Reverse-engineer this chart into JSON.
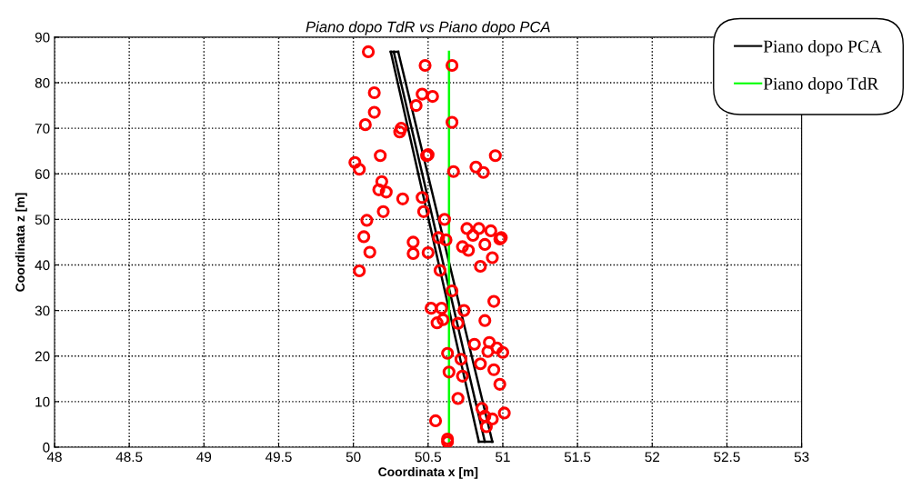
{
  "chart_data": {
    "type": "scatter",
    "title": "Piano dopo TdR vs Piano dopo PCA",
    "xlabel": "Coordinata x [m]",
    "ylabel": "Coordinata z [m]",
    "xlim": [
      48,
      53
    ],
    "xticks": [
      48,
      48.5,
      49,
      49.5,
      50,
      50.5,
      51,
      51.5,
      52,
      52.5,
      53
    ],
    "ylim": [
      0,
      90
    ],
    "yticks": [
      0,
      10,
      20,
      30,
      40,
      50,
      60,
      70,
      80,
      90
    ],
    "grid": true,
    "legend": "top right",
    "series": [
      {
        "color": "#ff0000",
        "marker": "circle",
        "x": [
          50.1,
          50.48,
          50.66,
          50.14,
          50.46,
          50.53,
          50.42,
          50.14,
          50.08,
          50.31,
          50.32,
          50.66,
          50.18,
          50.5,
          50.49,
          50.95,
          50.01,
          50.04,
          50.82,
          50.67,
          50.87,
          50.19,
          50.17,
          50.22,
          50.33,
          50.46,
          50.61,
          50.09,
          50.47,
          50.2,
          50.07,
          50.4,
          50.57,
          50.62,
          50.76,
          50.84,
          50.92,
          50.8,
          50.99,
          50.98,
          50.73,
          50.77,
          50.88,
          50.11,
          50.4,
          50.5,
          50.04,
          50.58,
          50.85,
          50.93,
          50.66,
          50.94,
          50.52,
          50.59,
          50.74,
          50.56,
          50.6,
          50.7,
          50.88,
          50.91,
          50.81,
          50.96,
          50.9,
          51.0,
          50.63,
          50.72,
          50.85,
          50.94,
          50.64,
          50.73,
          50.98,
          50.7,
          50.86,
          50.88,
          50.93,
          51.01,
          50.55,
          50.89,
          50.63,
          50.63
        ],
        "values": [
          86.8,
          83.8,
          83.8,
          77.8,
          77.5,
          77,
          75,
          73.5,
          70.8,
          69.2,
          70,
          71.3,
          64,
          64.2,
          64,
          64,
          62.5,
          61,
          61.5,
          60.5,
          60.3,
          58.3,
          56.5,
          56,
          54.5,
          54.8,
          50,
          49.8,
          51.7,
          51.7,
          46.2,
          45,
          46,
          45.5,
          48,
          48,
          47.5,
          46.5,
          46,
          45.7,
          44,
          43.2,
          44.5,
          42.8,
          42.5,
          42.7,
          38.7,
          38.8,
          39.7,
          41.6,
          34.3,
          32,
          30.5,
          30.5,
          30,
          27.3,
          28,
          27.2,
          27.8,
          23,
          22.6,
          21.8,
          21,
          20.8,
          20.6,
          19.3,
          18.3,
          17,
          16.5,
          15.6,
          13.8,
          10.7,
          8.5,
          6.8,
          6.2,
          7.5,
          5.8,
          4.5,
          1.8,
          1.2
        ]
      },
      {
        "type": "line",
        "name": "Piano dopo PCA",
        "color": "#000000",
        "marker": "none",
        "line_style": "solid",
        "x": [
          50.25,
          50.84
        ],
        "values": [
          86.8,
          1.2
        ]
      },
      {
        "type": "line",
        "color": "#000000",
        "marker": "none",
        "line_style": "solid",
        "x": [
          50.27,
          50.88
        ],
        "values": [
          86.8,
          1.2
        ]
      },
      {
        "type": "line",
        "color": "#000000",
        "marker": "none",
        "line_style": "solid",
        "x": [
          50.3,
          50.93
        ],
        "values": [
          86.8,
          1.2
        ]
      },
      {
        "type": "line",
        "color": "#000000",
        "marker": "none",
        "line_style": "solid",
        "x": [
          50.25,
          50.3
        ],
        "values": [
          86.8,
          86.8
        ]
      },
      {
        "type": "line",
        "color": "#000000",
        "marker": "none",
        "line_style": "solid",
        "x": [
          50.84,
          50.93
        ],
        "values": [
          1.2,
          1.2
        ]
      },
      {
        "type": "line",
        "name": "Piano dopo TdR",
        "color": "#00ff00",
        "marker": "none",
        "line_style": "solid",
        "x": [
          50.64,
          50.64
        ],
        "values": [
          1.2,
          86.8
        ]
      }
    ]
  }
}
